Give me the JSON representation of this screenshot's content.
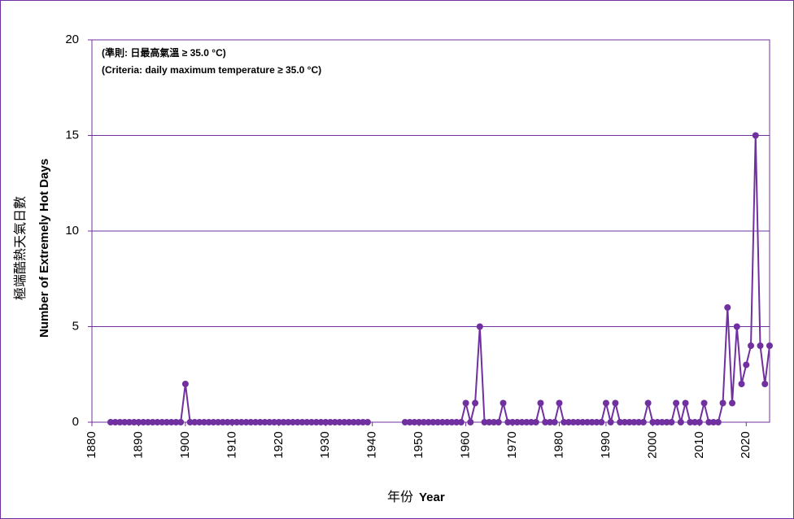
{
  "chart_data": {
    "type": "line",
    "annotations": [
      "(準則: 日最高氣溫 ≥ 35.0 °C)",
      "(Criteria: daily maximum temperature ≥ 35.0 °C)"
    ],
    "y_label_zh": "極端酷熱天氣日數",
    "y_label_en": "Number of Extremely Hot Days",
    "x_label_zh": "年份",
    "x_label_en": "Year",
    "x": [
      1884,
      1885,
      1886,
      1887,
      1888,
      1889,
      1890,
      1891,
      1892,
      1893,
      1894,
      1895,
      1896,
      1897,
      1898,
      1899,
      1900,
      1901,
      1902,
      1903,
      1904,
      1905,
      1906,
      1907,
      1908,
      1909,
      1910,
      1911,
      1912,
      1913,
      1914,
      1915,
      1916,
      1917,
      1918,
      1919,
      1920,
      1921,
      1922,
      1923,
      1924,
      1925,
      1926,
      1927,
      1928,
      1929,
      1930,
      1931,
      1932,
      1933,
      1934,
      1935,
      1936,
      1937,
      1938,
      1939,
      1940,
      1941,
      1942,
      1943,
      1944,
      1945,
      1946,
      1947,
      1948,
      1949,
      1950,
      1951,
      1952,
      1953,
      1954,
      1955,
      1956,
      1957,
      1958,
      1959,
      1960,
      1961,
      1962,
      1963,
      1964,
      1965,
      1966,
      1967,
      1968,
      1969,
      1970,
      1971,
      1972,
      1973,
      1974,
      1975,
      1976,
      1977,
      1978,
      1979,
      1980,
      1981,
      1982,
      1983,
      1984,
      1985,
      1986,
      1987,
      1988,
      1989,
      1990,
      1991,
      1992,
      1993,
      1994,
      1995,
      1996,
      1997,
      1998,
      1999,
      2000,
      2001,
      2002,
      2003,
      2004,
      2005,
      2006,
      2007,
      2008,
      2009,
      2010,
      2011,
      2012,
      2013,
      2014,
      2015,
      2016,
      2017,
      2018,
      2019,
      2020,
      2021,
      2022,
      2023,
      2024,
      2025
    ],
    "series": [
      {
        "color": "#7030a0",
        "values": [
          0,
          0,
          0,
          0,
          0,
          0,
          0,
          0,
          0,
          0,
          0,
          0,
          0,
          0,
          0,
          0,
          2,
          0,
          0,
          0,
          0,
          0,
          0,
          0,
          0,
          0,
          0,
          0,
          0,
          0,
          0,
          0,
          0,
          0,
          0,
          0,
          0,
          0,
          0,
          0,
          0,
          0,
          0,
          0,
          0,
          0,
          0,
          0,
          0,
          0,
          0,
          0,
          0,
          0,
          0,
          0,
          null,
          null,
          null,
          null,
          null,
          null,
          null,
          0,
          0,
          0,
          0,
          0,
          0,
          0,
          0,
          0,
          0,
          0,
          0,
          0,
          1,
          0,
          1,
          5,
          0,
          0,
          0,
          0,
          1,
          0,
          0,
          0,
          0,
          0,
          0,
          0,
          1,
          0,
          0,
          0,
          1,
          0,
          0,
          0,
          0,
          0,
          0,
          0,
          0,
          0,
          1,
          0,
          1,
          0,
          0,
          0,
          0,
          0,
          0,
          1,
          0,
          0,
          0,
          0,
          0,
          1,
          0,
          1,
          0,
          0,
          0,
          1,
          0,
          0,
          0,
          1,
          6,
          1,
          5,
          2,
          3,
          4,
          15,
          4,
          2,
          4
        ]
      }
    ],
    "xlim": [
      1880,
      2025
    ],
    "xticks": [
      1880,
      1890,
      1900,
      1910,
      1920,
      1930,
      1940,
      1950,
      1960,
      1970,
      1980,
      1990,
      2000,
      2010,
      2020
    ],
    "ylim": [
      0,
      20
    ],
    "yticks": [
      0,
      5,
      10,
      15,
      20
    ],
    "grid": true
  }
}
